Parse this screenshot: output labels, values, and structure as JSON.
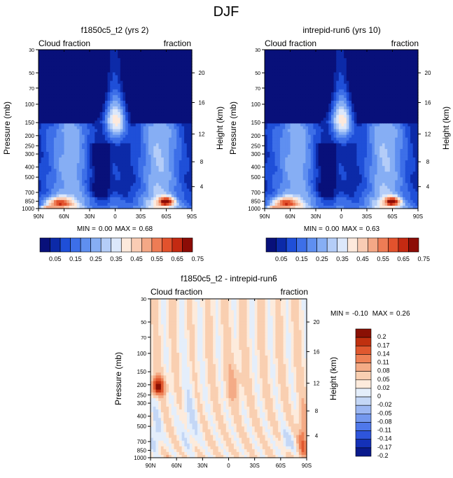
{
  "page": {
    "title": "DJF"
  },
  "colors": {
    "abs_scale": [
      "#08107a",
      "#0c2aa8",
      "#1f4fd8",
      "#3d6fe8",
      "#5f8ff0",
      "#86aef4",
      "#b4cdf8",
      "#dce8fb",
      "#fde9dc",
      "#f9ccb4",
      "#f4a886",
      "#ee7c55",
      "#e2522d",
      "#c42a12",
      "#8c0c06"
    ],
    "diff_scale": [
      "#0a1a8c",
      "#1431b8",
      "#2e55dc",
      "#4f78ea",
      "#7498ee",
      "#9cb7f2",
      "#c4d7f6",
      "#e4eefb",
      "#fdebdc",
      "#f9cfb1",
      "#f4ab86",
      "#ee8156",
      "#e0582f",
      "#c0300f",
      "#8a1004"
    ]
  },
  "chart_data": [
    {
      "id": "panel1",
      "type": "heatmap",
      "title": "f1850c5_t2 (yrs 2)",
      "left_label": "Cloud fraction",
      "right_label": "fraction",
      "ylabel": "Pressure (mb)",
      "ylabel_right": "Height (km)",
      "x_ticks": [
        "90N",
        "60N",
        "30N",
        "0",
        "30S",
        "60S",
        "90S"
      ],
      "y_ticks": [
        "30",
        "50",
        "70",
        "100",
        "150",
        "200",
        "250",
        "300",
        "400",
        "500",
        "700",
        "850",
        "1000"
      ],
      "y_values": [
        30,
        50,
        70,
        100,
        150,
        200,
        250,
        300,
        400,
        500,
        700,
        850,
        1000
      ],
      "height_ticks": [
        "20",
        "16",
        "12",
        "8",
        "4"
      ],
      "height_values": [
        20,
        16,
        12,
        8,
        4
      ],
      "stats": {
        "min_label": "MIN =",
        "min": "0.00",
        "max_label": "MAX =",
        "max": "0.68"
      },
      "colorbar_labels": [
        "0.05",
        "0.15",
        "0.25",
        "0.35",
        "0.45",
        "0.55",
        "0.65",
        "0.75"
      ],
      "field": "cloud"
    },
    {
      "id": "panel2",
      "type": "heatmap",
      "title": "intrepid-run6 (yrs 10)",
      "left_label": "Cloud fraction",
      "right_label": "fraction",
      "ylabel": "Pressure (mb)",
      "ylabel_right": "Height (km)",
      "x_ticks": [
        "90N",
        "60N",
        "30N",
        "0",
        "30S",
        "60S",
        "90S"
      ],
      "y_ticks": [
        "30",
        "50",
        "70",
        "100",
        "150",
        "200",
        "250",
        "300",
        "400",
        "500",
        "700",
        "850",
        "1000"
      ],
      "y_values": [
        30,
        50,
        70,
        100,
        150,
        200,
        250,
        300,
        400,
        500,
        700,
        850,
        1000
      ],
      "height_ticks": [
        "20",
        "16",
        "12",
        "8",
        "4"
      ],
      "height_values": [
        20,
        16,
        12,
        8,
        4
      ],
      "stats": {
        "min_label": "MIN =",
        "min": "0.00",
        "max_label": "MAX =",
        "max": "0.63"
      },
      "colorbar_labels": [
        "0.05",
        "0.15",
        "0.25",
        "0.35",
        "0.45",
        "0.55",
        "0.65",
        "0.75"
      ],
      "field": "cloud"
    },
    {
      "id": "panel3",
      "type": "heatmap",
      "title": "f1850c5_t2 - intrepid-run6",
      "left_label": "Cloud fraction",
      "right_label": "fraction",
      "ylabel": "Pressure (mb)",
      "ylabel_right": "Height (km)",
      "x_ticks": [
        "90N",
        "60N",
        "30N",
        "0",
        "30S",
        "60S",
        "90S"
      ],
      "y_ticks": [
        "30",
        "50",
        "70",
        "100",
        "150",
        "200",
        "250",
        "300",
        "400",
        "500",
        "700",
        "850",
        "1000"
      ],
      "y_values": [
        30,
        50,
        70,
        100,
        150,
        200,
        250,
        300,
        400,
        500,
        700,
        850,
        1000
      ],
      "height_ticks": [
        "20",
        "16",
        "12",
        "8",
        "4"
      ],
      "height_values": [
        20,
        16,
        12,
        8,
        4
      ],
      "stats": {
        "min_label": "MIN =",
        "min": "-0.10",
        "max_label": "MAX =",
        "max": "0.26"
      },
      "colorbar_labels": [
        "0.2",
        "0.17",
        "0.14",
        "0.11",
        "0.08",
        "0.05",
        "0.02",
        "0",
        "-0.02",
        "-0.05",
        "-0.08",
        "-0.11",
        "-0.14",
        "-0.17",
        "-0.2"
      ],
      "field": "diff"
    }
  ]
}
